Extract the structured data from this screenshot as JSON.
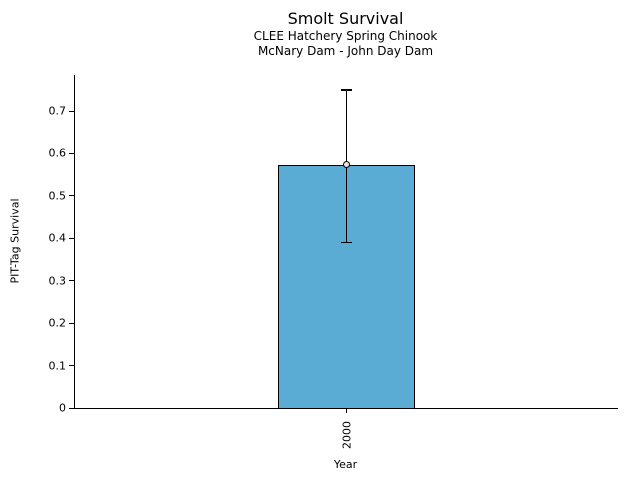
{
  "chart_data": {
    "type": "bar",
    "title": "Smolt Survival",
    "subtitle": [
      "CLEE Hatchery Spring Chinook",
      "McNary Dam - John Day Dam"
    ],
    "categories": [
      "2000"
    ],
    "values": [
      0.573
    ],
    "error_low": [
      0.39
    ],
    "error_high": [
      0.75
    ],
    "xlabel": "Year",
    "ylabel": "PIT-Tag Survival",
    "ylim": [
      0,
      0.785
    ],
    "yticks": [
      0,
      0.1,
      0.2,
      0.3,
      0.4,
      0.5,
      0.6,
      0.7
    ],
    "ytick_labels": [
      "0",
      "0.1",
      "0.2",
      "0.3",
      "0.4",
      "0.5",
      "0.6",
      "0.7"
    ],
    "xtick_rotation": 90,
    "grid": false,
    "legend": "none",
    "colors": {
      "bar_fill": "#5BACD5",
      "bar_edge": "#000000",
      "error_bar": "#000000",
      "marker_edge": "#000000",
      "text": "#000000",
      "background": "#ffffff"
    },
    "marker": "open-circle"
  }
}
